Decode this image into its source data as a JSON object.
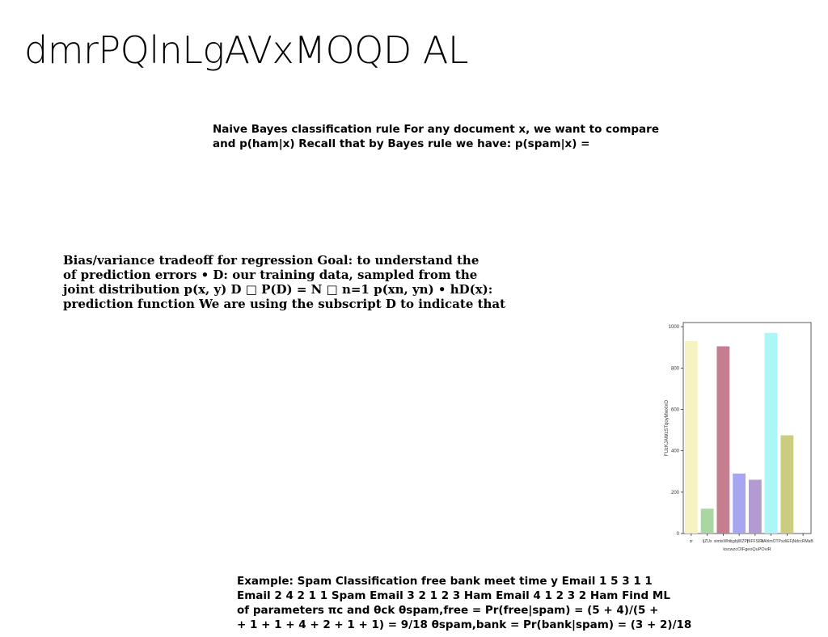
{
  "slide": {
    "title": "dmrPQlnLgAVxMOQD AL",
    "blocks": {
      "naive_bayes": "Naive Bayes classification rule For any document x, we want to compare\nand p(ham|x) Recall that by Bayes rule we have: p(spam|x) =",
      "bias_variance": "Bias/variance tradeoff for regression Goal: to understand the\nof prediction errors • D: our training data, sampled from the\njoint distribution p(x, y) D □ P(D) = N □ n=1 p(xn, yn) • hD(x):\nprediction function We are using the subscript D to indicate that",
      "spam_example": "Example: Spam Classification free bank meet time y Email 1 5 3 1 1\nEmail 2 4 2 1 1 Spam Email 3 2 1 2 3 Ham Email 4 1 2 3 2 Ham Find ML\nof parameters πc and θck θspam,free = Pr(free|spam) = (5 + 4)/(5 +\n+ 1 + 1 + 4 + 2 + 1 + 1) = 9/18 θspam,bank = Pr(bank|spam) = (3 + 2)/18"
    }
  },
  "chart_data": {
    "type": "bar",
    "categories": [
      "zr",
      "IjZUx",
      "simtsWhtc",
      "LgbjWZPj",
      "BIFFSIRl",
      "bAhlmOTP",
      "xzliEFj",
      "NdccRMaB"
    ],
    "values": [
      930,
      120,
      905,
      290,
      260,
      970,
      475,
      0
    ],
    "bar_colors": [
      "#f6f2c1",
      "#a9d6a1",
      "#c47e90",
      "#a8a6f0",
      "#b39ad0",
      "#acf6f7",
      "#cccc80"
    ],
    "xlabel": "kscwzcOIFgeoQuPOviR",
    "ylabel": "FUzKJAWzSTqoyMwxlxO",
    "yticks": [
      0,
      200,
      400,
      600,
      800,
      1000
    ],
    "ylim": [
      0,
      1020
    ],
    "grid": false
  }
}
